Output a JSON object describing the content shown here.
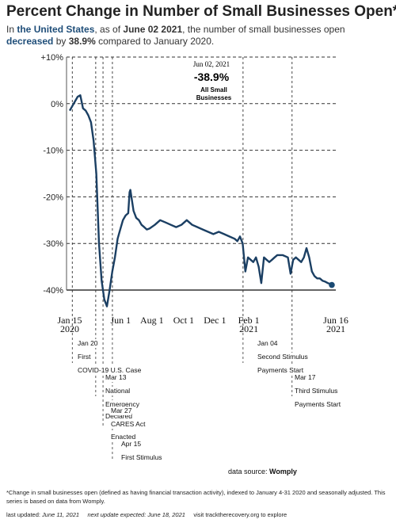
{
  "header": {
    "title": "Percent Change in Number of Small Businesses Open*",
    "sub_in": "In",
    "sub_region": "the United States",
    "sub_asof": ", as of",
    "sub_date": "June 02 2021",
    "sub_mid": ", the number of small businesses open",
    "sub_dir": "decreased",
    "sub_by": "by",
    "sub_value": "38.9%",
    "sub_end": "compared to January 2020."
  },
  "callout": {
    "date": "Jun 02, 2021",
    "value": "-38.9%",
    "line1": "All Small",
    "line2": "Businesses"
  },
  "events": [
    {
      "line1": "Jan 20",
      "line2": "First",
      "line3": "COVID-19 U.S. Case"
    },
    {
      "line1": "Mar 13",
      "line2": "National",
      "line3": "Emergency",
      "line4": "Declared"
    },
    {
      "line1": "Mar 27",
      "line2": "CARES Act",
      "line3": "Enacted"
    },
    {
      "line1": "Apr 15",
      "line2": "First Stimulus"
    },
    {
      "line1": "Jan 04",
      "line2": "Second Stimulus",
      "line3": "Payments Start"
    },
    {
      "line1": "Mar 17",
      "line2": "Third Stimulus",
      "line3": "Payments Start"
    }
  ],
  "source": {
    "prefix": "data source:",
    "name": "Womply"
  },
  "footnote": "*Change in small businesses open (defined as having financial transaction activity), indexed to January 4-31 2020 and seasonally adjusted. This series is based on data from Womply.",
  "updated": {
    "last_label": "last updated:",
    "last_date": "June 11, 2021",
    "next_label": "next update expected:",
    "next_date": "June 18, 2021",
    "visit": "visit tracktherecovery.org to explore"
  },
  "colors": {
    "line": "#1b3f63",
    "grid": "#333333",
    "marker": "#1b4a73"
  },
  "chart_data": {
    "type": "line",
    "title": "Percent Change in Number of Small Businesses Open*",
    "xlabel": "",
    "ylabel": "",
    "x_ticks": [
      {
        "t": 0,
        "line1": "Jan 15",
        "line2": "2020"
      },
      {
        "t": 0.1915,
        "line1": "Jun 1",
        "line2": ""
      },
      {
        "t": 0.3089,
        "line1": "Aug 1",
        "line2": ""
      },
      {
        "t": 0.4282,
        "line1": "Oct 1",
        "line2": ""
      },
      {
        "t": 0.5457,
        "line1": "Dec 1",
        "line2": ""
      },
      {
        "t": 0.6729,
        "line1": "Feb 1",
        "line2": "2021"
      },
      {
        "t": 1.0,
        "line1": "Jun 16",
        "line2": "2021"
      }
    ],
    "y_ticks": [
      "+10%",
      "0%",
      "-10%",
      "-20%",
      "-30%",
      "-40%"
    ],
    "y_values": [
      10,
      0,
      -10,
      -20,
      -30,
      -40
    ],
    "ylim": [
      -45,
      11
    ],
    "grid": "horizontal dashed",
    "event_lines_t": [
      0.0098,
      0.0978,
      0.1252,
      0.1605,
      0.6514,
      0.8356
    ],
    "series": [
      {
        "x": [
          0,
          0.01,
          0.02,
          0.03,
          0.04,
          0.05,
          0.06,
          0.07,
          0.08,
          0.09,
          0.1,
          0.11,
          0.12,
          0.13,
          0.14,
          0.15,
          0.16,
          0.17,
          0.18,
          0.19,
          0.2,
          0.21,
          0.22,
          0.225,
          0.228,
          0.24,
          0.25,
          0.26,
          0.27,
          0.28,
          0.29,
          0.3,
          0.32,
          0.34,
          0.36,
          0.38,
          0.4,
          0.42,
          0.44,
          0.46,
          0.48,
          0.5,
          0.52,
          0.54,
          0.56,
          0.58,
          0.6,
          0.62,
          0.63,
          0.64,
          0.65,
          0.66,
          0.67,
          0.68,
          0.69,
          0.7,
          0.71,
          0.72,
          0.73,
          0.74,
          0.75,
          0.76,
          0.77,
          0.78,
          0.8,
          0.82,
          0.83,
          0.84,
          0.85,
          0.86,
          0.87,
          0.88,
          0.89,
          0.9,
          0.91,
          0.92,
          0.93,
          0.94,
          0.95,
          0.96,
          0.97,
          0.98,
          0.985
        ],
        "y": [
          -1.5,
          -0.5,
          0.5,
          1.5,
          1.8,
          -1,
          -1.5,
          -2.5,
          -4,
          -8,
          -15,
          -30,
          -38,
          -42,
          -43.5,
          -40,
          -36,
          -33,
          -29,
          -27,
          -25,
          -24,
          -23.5,
          -19,
          -18.5,
          -23,
          -24.5,
          -25,
          -26,
          -26.5,
          -27,
          -26.8,
          -26,
          -25,
          -25.5,
          -26,
          -26.5,
          -26,
          -25,
          -26,
          -26.5,
          -27,
          -27.5,
          -28,
          -27.5,
          -28,
          -28.5,
          -29,
          -29.5,
          -28.5,
          -30,
          -36,
          -33,
          -33.5,
          -34,
          -33,
          -35,
          -38.5,
          -33,
          -33.5,
          -34,
          -33.5,
          -33,
          -32.5,
          -32.5,
          -33,
          -36.5,
          -33.5,
          -33,
          -33.5,
          -34,
          -33,
          -31,
          -33,
          -36,
          -37,
          -37.5,
          -37.5,
          -38,
          -38.2,
          -38.5,
          -38.7,
          -38.9
        ]
      }
    ],
    "marker": {
      "t": 0.985,
      "y": -38.9
    }
  }
}
